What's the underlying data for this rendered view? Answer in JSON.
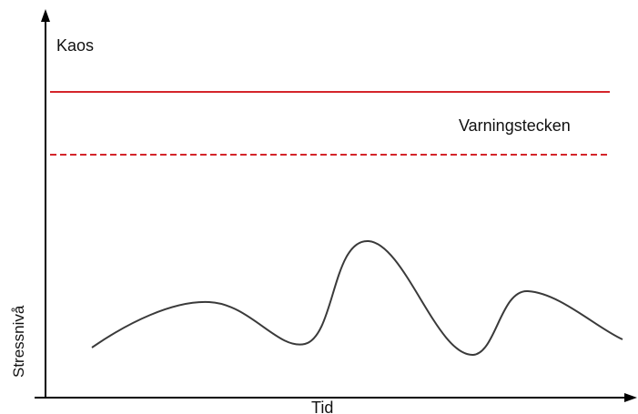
{
  "labels": {
    "top_y": "Kaos",
    "warning": "Varningstecken",
    "y_axis": "Stressnivå",
    "x_axis": "Tid"
  },
  "colors": {
    "axis": "#000000",
    "limit": "#d4252b",
    "curve": "#3a3a3a",
    "text": "#111111"
  },
  "lines": {
    "chaos_threshold_style": "solid",
    "warning_threshold_style": "dashed"
  }
}
